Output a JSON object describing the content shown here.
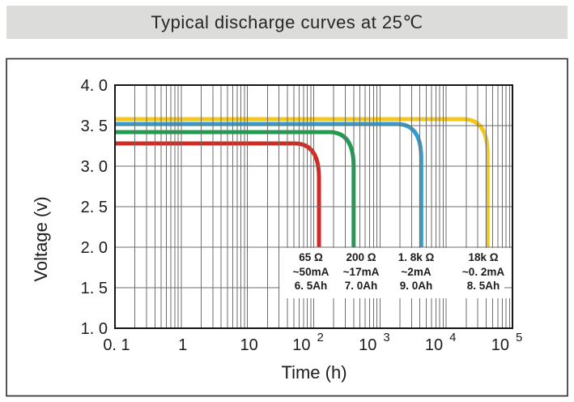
{
  "header": {
    "title": "Typical discharge curves at 25℃"
  },
  "chart_data": {
    "type": "line",
    "title": "Typical discharge curves at 25℃",
    "xlabel": "Time (h)",
    "ylabel": "Voltage (v)",
    "x_scale": "log",
    "xlim": [
      0.1,
      100000
    ],
    "ylim": [
      1.0,
      4.0
    ],
    "cutoff_voltage": 2.0,
    "grid": {
      "show": true,
      "color": "#6e6e6e",
      "minor_log_divisions": [
        2,
        3,
        4,
        5,
        6,
        7,
        8,
        9
      ],
      "y_step": 0.5
    },
    "frame_color": "#161616",
    "x_ticks": [
      {
        "value": 0.1,
        "label": "0. 1"
      },
      {
        "value": 1,
        "label": "1"
      },
      {
        "value": 10,
        "label": "10"
      },
      {
        "value": 100,
        "label": "10",
        "exp": "2"
      },
      {
        "value": 1000,
        "label": "10",
        "exp": "3"
      },
      {
        "value": 10000,
        "label": "10",
        "exp": "4"
      },
      {
        "value": 100000,
        "label": "10",
        "exp": "5"
      }
    ],
    "y_ticks": [
      {
        "value": 4.0,
        "label": "4. 0"
      },
      {
        "value": 3.5,
        "label": "3. 5"
      },
      {
        "value": 3.0,
        "label": "3. 0"
      },
      {
        "value": 2.5,
        "label": "2. 5"
      },
      {
        "value": 2.0,
        "label": "2. 0"
      },
      {
        "value": 1.5,
        "label": "1. 5"
      },
      {
        "value": 1.0,
        "label": "1. 0"
      }
    ],
    "series": [
      {
        "name": "65-ohm-load",
        "color": "#cf2a23",
        "plateau_voltage": 3.28,
        "end_hours": 120,
        "resistance": "65 Ω",
        "current": "~50mA",
        "capacity": "6. 5Ah",
        "label_cx": 384
      },
      {
        "name": "200-ohm-load",
        "color": "#1f9c50",
        "plateau_voltage": 3.42,
        "end_hours": 400,
        "resistance": "200 Ω",
        "current": "~17mA",
        "capacity": "7. 0Ah",
        "label_cx": 446
      },
      {
        "name": "1.8k-ohm-load",
        "color": "#2e9fd4",
        "plateau_voltage": 3.52,
        "end_hours": 4200,
        "resistance": "1. 8k Ω",
        "current": "~2mA",
        "capacity": "9. 0Ah",
        "label_cx": 514
      },
      {
        "name": "18k-ohm-load",
        "color": "#f5c71a",
        "plateau_voltage": 3.58,
        "end_hours": 42000,
        "resistance": "18k Ω",
        "current": "~0. 2mA",
        "capacity": "8. 5Ah",
        "label_cx": 597
      }
    ],
    "legend_position": "inside-bottom-right"
  }
}
